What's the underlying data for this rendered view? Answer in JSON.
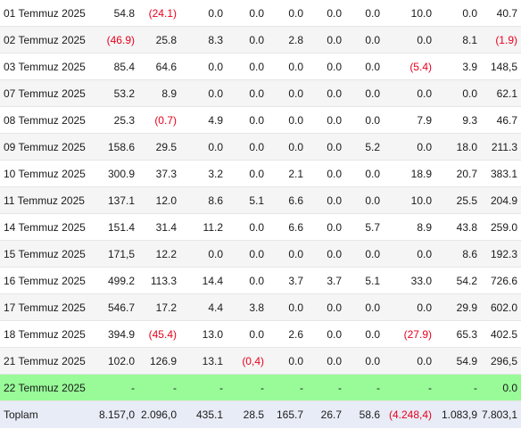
{
  "rows": [
    {
      "date": "01 Temmuz 2025",
      "values": [
        "54.8",
        "(24.1)",
        "0.0",
        "0.0",
        "0.0",
        "0.0",
        "0.0",
        "10.0",
        "0.0",
        "40.7"
      ]
    },
    {
      "date": "02 Temmuz 2025",
      "values": [
        "(46.9)",
        "25.8",
        "8.3",
        "0.0",
        "2.8",
        "0.0",
        "0.0",
        "0.0",
        "8.1",
        "(1.9)"
      ]
    },
    {
      "date": "03 Temmuz 2025",
      "values": [
        "85.4",
        "64.6",
        "0.0",
        "0.0",
        "0.0",
        "0.0",
        "0.0",
        "(5.4)",
        "3.9",
        "148,5"
      ]
    },
    {
      "date": "07 Temmuz 2025",
      "values": [
        "53.2",
        "8.9",
        "0.0",
        "0.0",
        "0.0",
        "0.0",
        "0.0",
        "0.0",
        "0.0",
        "62.1"
      ]
    },
    {
      "date": "08 Temmuz 2025",
      "values": [
        "25.3",
        "(0.7)",
        "4.9",
        "0.0",
        "0.0",
        "0.0",
        "0.0",
        "7.9",
        "9.3",
        "46.7"
      ]
    },
    {
      "date": "09 Temmuz 2025",
      "values": [
        "158.6",
        "29.5",
        "0.0",
        "0.0",
        "0.0",
        "0.0",
        "5.2",
        "0.0",
        "18.0",
        "211.3"
      ]
    },
    {
      "date": "10 Temmuz 2025",
      "values": [
        "300.9",
        "37.3",
        "3.2",
        "0.0",
        "2.1",
        "0.0",
        "0.0",
        "18.9",
        "20.7",
        "383.1"
      ]
    },
    {
      "date": "11 Temmuz 2025",
      "values": [
        "137.1",
        "12.0",
        "8.6",
        "5.1",
        "6.6",
        "0.0",
        "0.0",
        "10.0",
        "25.5",
        "204.9"
      ]
    },
    {
      "date": "14 Temmuz 2025",
      "values": [
        "151.4",
        "31.4",
        "11.2",
        "0.0",
        "6.6",
        "0.0",
        "5.7",
        "8.9",
        "43.8",
        "259.0"
      ]
    },
    {
      "date": "15 Temmuz 2025",
      "values": [
        "171,5",
        "12.2",
        "0.0",
        "0.0",
        "0.0",
        "0.0",
        "0.0",
        "0.0",
        "8.6",
        "192.3"
      ]
    },
    {
      "date": "16 Temmuz 2025",
      "values": [
        "499.2",
        "113.3",
        "14.4",
        "0.0",
        "3.7",
        "3.7",
        "5.1",
        "33.0",
        "54.2",
        "726.6"
      ]
    },
    {
      "date": "17 Temmuz 2025",
      "values": [
        "546.7",
        "17.2",
        "4.4",
        "3.8",
        "0.0",
        "0.0",
        "0.0",
        "0.0",
        "29.9",
        "602.0"
      ]
    },
    {
      "date": "18 Temmuz 2025",
      "values": [
        "394.9",
        "(45.4)",
        "13.0",
        "0.0",
        "2.6",
        "0.0",
        "0.0",
        "(27.9)",
        "65.3",
        "402.5"
      ]
    },
    {
      "date": "21 Temmuz 2025",
      "values": [
        "102.0",
        "126.9",
        "13.1",
        "(0,4)",
        "0.0",
        "0.0",
        "0.0",
        "0.0",
        "54.9",
        "296,5"
      ]
    },
    {
      "date": "22 Temmuz 2025",
      "values": [
        "-",
        "-",
        "-",
        "-",
        "-",
        "-",
        "-",
        "-",
        "-",
        "0.0"
      ],
      "highlight": true
    }
  ],
  "total": {
    "label": "Toplam",
    "values": [
      "8.157,0",
      "2.096,0",
      "435.1",
      "28.5",
      "165.7",
      "26.7",
      "58.6",
      "(4.248,4)",
      "1.083,9",
      "7.803,1"
    ]
  },
  "colors": {
    "negative": "#e8001c",
    "highlight": "#98fb98",
    "total_row_bg": "#e8ecf6",
    "stripe": "#f5f5f5"
  }
}
